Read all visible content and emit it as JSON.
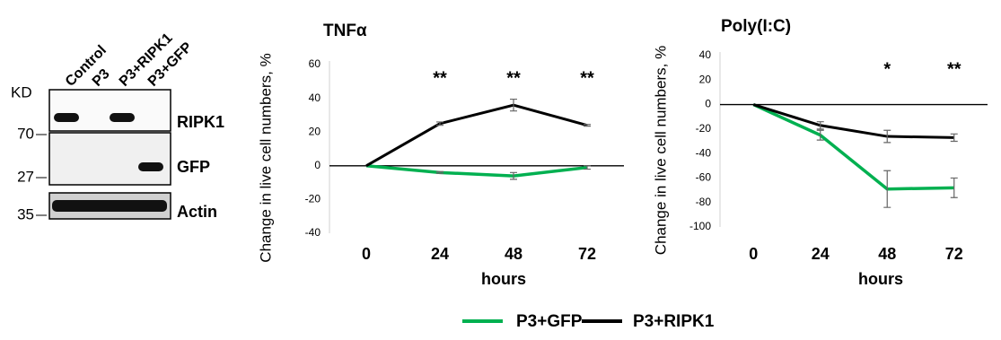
{
  "blot": {
    "kd_label": "KD",
    "lanes": [
      "Control",
      "P3",
      "P3+RIPK1",
      "P3+GFP"
    ],
    "markers": [
      "70",
      "27",
      "35"
    ],
    "proteins": [
      "RIPK1",
      "GFP",
      "Actin"
    ]
  },
  "chart_data": [
    {
      "type": "line",
      "title": "TNFα",
      "ylabel": "Change in live cell numbers, %",
      "xlabel": "hours",
      "x": [
        0,
        24,
        48,
        72
      ],
      "xlim": [
        -12,
        84
      ],
      "xticks": [
        0,
        24,
        48,
        72
      ],
      "ylim": [
        -40,
        60
      ],
      "yticks": [
        -40,
        -20,
        0,
        20,
        40,
        60
      ],
      "series": [
        {
          "name": "P3+GFP",
          "color": "#00b050",
          "values": [
            0,
            -4,
            -6,
            -1
          ],
          "errors": [
            0,
            0.5,
            2,
            1
          ]
        },
        {
          "name": "P3+RIPK1",
          "color": "#000000",
          "values": [
            0,
            25,
            36,
            24
          ],
          "errors": [
            0,
            1,
            3.5,
            0.5
          ]
        }
      ],
      "annotations": [
        {
          "x": 24,
          "text": "**"
        },
        {
          "x": 48,
          "text": "**"
        },
        {
          "x": 72,
          "text": "**"
        }
      ]
    },
    {
      "type": "line",
      "title": "Poly(I:C)",
      "ylabel": "Change in live cell numbers, %",
      "xlabel": "hours",
      "x": [
        0,
        24,
        48,
        72
      ],
      "xlim": [
        -12,
        84
      ],
      "xticks": [
        0,
        24,
        48,
        72
      ],
      "ylim": [
        -100,
        40
      ],
      "yticks": [
        -100,
        -80,
        -60,
        -40,
        -20,
        0,
        20,
        40
      ],
      "series": [
        {
          "color": "#00b050",
          "values": [
            0,
            -25,
            -69,
            -68
          ],
          "errors": [
            0,
            4,
            15,
            8
          ]
        },
        {
          "color": "#000000",
          "values": [
            0,
            -17,
            -26,
            -27
          ],
          "errors": [
            0,
            3,
            5,
            3
          ]
        }
      ],
      "annotations": [
        {
          "x": 48,
          "text": "*"
        },
        {
          "x": 72,
          "text": "**"
        }
      ]
    }
  ]
}
